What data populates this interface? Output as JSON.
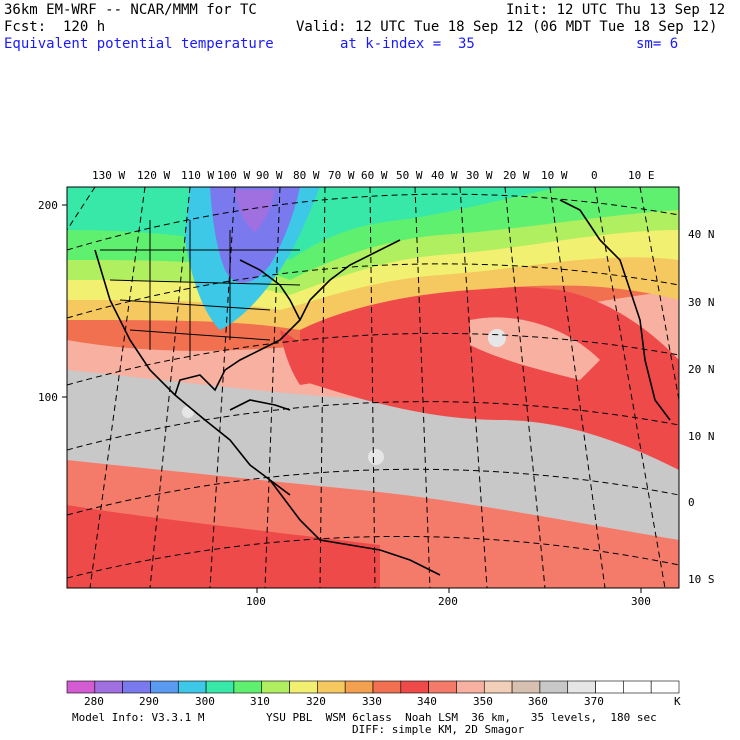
{
  "header": {
    "model": "36km EM-WRF -- NCAR/MMM for TC",
    "init": "Init: 12 UTC Thu 13 Sep 12",
    "fcst": "Fcst:  120 h",
    "valid": "Valid: 12 UTC Tue 18 Sep 12 (06 MDT Tue 18 Sep 12)",
    "field": "Equivalent potential temperature",
    "level": "at k-index =  35",
    "smooth": "sm= 6"
  },
  "map": {
    "lon_labels": [
      "130 W",
      "120 W",
      "110 W",
      "100 W",
      "90 W",
      "80 W",
      "70 W",
      "60 W",
      "50 W",
      "40 W",
      "30 W",
      "20 W",
      "10 W",
      "0",
      "10 E"
    ],
    "lat_labels": [
      "40 N",
      "30 N",
      "20 N",
      "10 N",
      "0",
      "10 S"
    ],
    "grid_y_labels": [
      "200",
      "100"
    ],
    "grid_x_labels": [
      "100",
      "200",
      "300"
    ]
  },
  "colorbar": {
    "colors": [
      "#d35cd3",
      "#a070e0",
      "#7a7aee",
      "#5a9af0",
      "#3cc8e6",
      "#38e8a8",
      "#60f070",
      "#b0f060",
      "#f2f070",
      "#f5c860",
      "#f3a050",
      "#f07050",
      "#ef4a4a",
      "#f47a6a",
      "#f8b0a0",
      "#f2cfb8",
      "#d8c0b0",
      "#c8c8c8",
      "#e6e6e6",
      "#ffffff",
      "#ffffff",
      "#ffffff"
    ],
    "labels": [
      "280",
      "290",
      "300",
      "310",
      "320",
      "330",
      "340",
      "350",
      "360",
      "370"
    ],
    "unit": "K"
  },
  "footer": {
    "model_info": "Model Info: V3.3.1 M",
    "physics": "YSU PBL  WSM 6class  Noah LSM  36 km,   35 levels,  180 sec",
    "diffusion": "DIFF: simple KM, 2D Smagor"
  }
}
